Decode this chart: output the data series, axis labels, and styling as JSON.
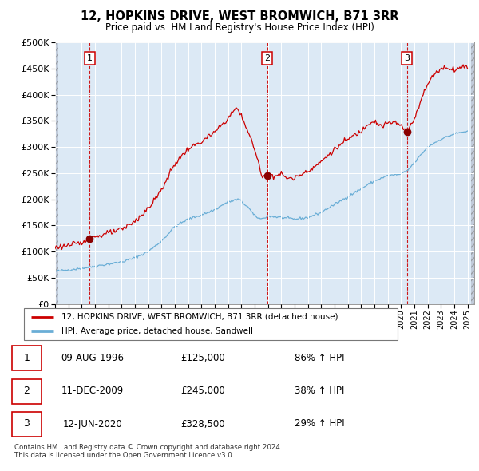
{
  "title": "12, HOPKINS DRIVE, WEST BROMWICH, B71 3RR",
  "subtitle": "Price paid vs. HM Land Registry's House Price Index (HPI)",
  "legend_entries": [
    "12, HOPKINS DRIVE, WEST BROMWICH, B71 3RR (detached house)",
    "HPI: Average price, detached house, Sandwell"
  ],
  "table_entries": [
    {
      "num": 1,
      "date": "09-AUG-1996",
      "price": "£125,000",
      "change": "86% ↑ HPI"
    },
    {
      "num": 2,
      "date": "11-DEC-2009",
      "price": "£245,000",
      "change": "38% ↑ HPI"
    },
    {
      "num": 3,
      "date": "12-JUN-2020",
      "price": "£328,500",
      "change": "29% ↑ HPI"
    }
  ],
  "footer": "Contains HM Land Registry data © Crown copyright and database right 2024.\nThis data is licensed under the Open Government Licence v3.0.",
  "sale_dates_decimal": [
    1996.608,
    2009.944,
    2020.444
  ],
  "sale_prices": [
    125000,
    245000,
    328500
  ],
  "hpi_color": "#6aaed6",
  "price_color": "#cc0000",
  "sale_dot_color": "#8b0000",
  "vline_color": "#cc0000",
  "plot_area_color": "#dce9f5",
  "hatch_color": "#b0b8c8",
  "grid_color": "#ffffff",
  "ylim": [
    0,
    500000
  ],
  "yticks": [
    0,
    50000,
    100000,
    150000,
    200000,
    250000,
    300000,
    350000,
    400000,
    450000,
    500000
  ],
  "xlim_start": 1994.0,
  "xlim_end": 2025.5
}
